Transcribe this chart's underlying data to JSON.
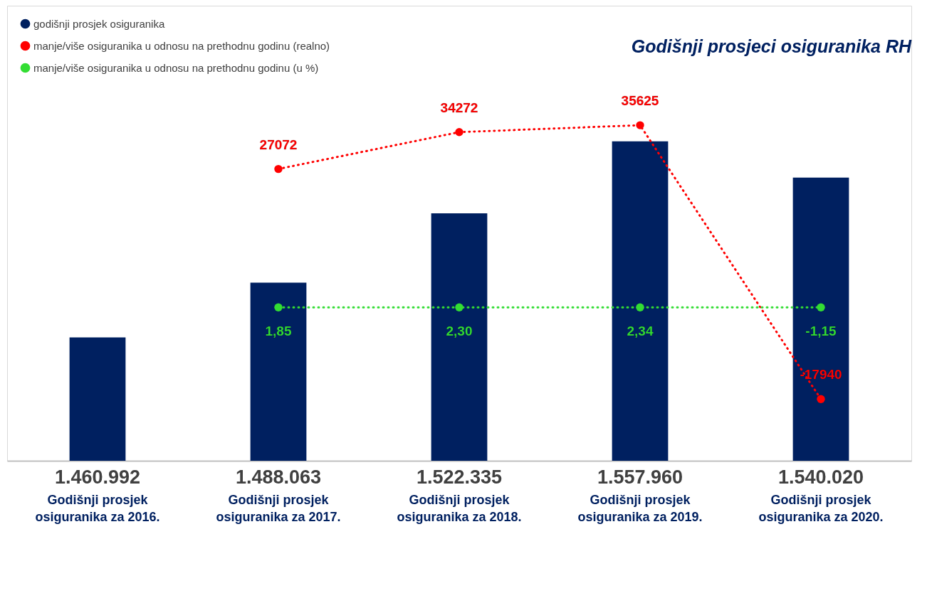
{
  "chart_data": {
    "type": "bar",
    "title": "Godišnji prosjeci osiguranika RH",
    "categories": [
      "Godišnji prosjek osiguranika za 2016.",
      "Godišnji prosjek osiguranika za 2017.",
      "Godišnji prosjek osiguranika za 2018.",
      "Godišnji prosjek osiguranika za 2019.",
      "Godišnji prosjek osiguranika za 2020."
    ],
    "series": [
      {
        "name": "godišnji prosjek osiguranika",
        "color": "#002060",
        "values": [
          1460992,
          1488063,
          1522335,
          1557960,
          1540020
        ],
        "value_labels": [
          "1.460.992",
          "1.488.063",
          "1.522.335",
          "1.557.960",
          "1.540.020"
        ]
      },
      {
        "name": "manje/više osiguranika u odnosu na prethodnu godinu (realno)",
        "type": "line",
        "axis": "y2",
        "color": "#ff0000",
        "values": [
          null,
          27072,
          34272,
          35625,
          -17940
        ],
        "value_labels": [
          null,
          "27072",
          "34272",
          "35625",
          "-17940"
        ]
      },
      {
        "name": "manje/više osiguranika u odnosu na prethodnu godinu (u %)",
        "type": "line",
        "axis": "y2",
        "color": "#33dd33",
        "values": [
          null,
          1.85,
          2.3,
          2.34,
          -1.15
        ],
        "value_labels": [
          null,
          "1,85",
          "2,30",
          "2,34",
          "-1,15"
        ]
      }
    ],
    "ylim": [
      1400000,
      1625000
    ],
    "y2lim": [
      -30000,
      59000
    ],
    "tick_labels": "x",
    "grid": false,
    "legend": "top left",
    "marker": "circle",
    "line_style": "dotted"
  }
}
